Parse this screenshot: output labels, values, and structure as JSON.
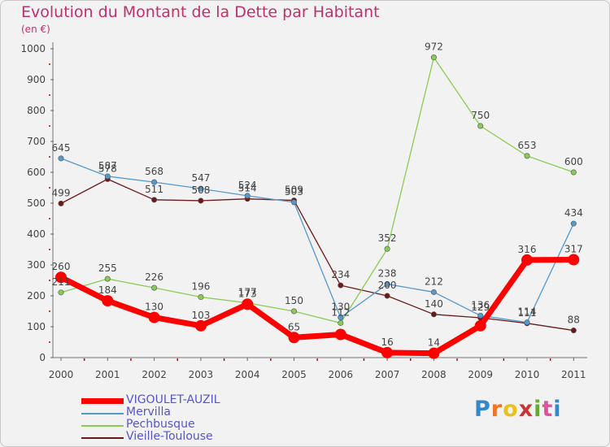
{
  "chart_data": {
    "type": "line",
    "title": "Evolution du Montant de la Dette par Habitant",
    "subtitle": "(en €)",
    "xlabel": "",
    "ylabel": "",
    "x": [
      "2000",
      "2001",
      "2002",
      "2003",
      "2004",
      "2005",
      "2006",
      "2007",
      "2008",
      "2009",
      "2010",
      "2011"
    ],
    "ylim": [
      0,
      1000
    ],
    "yticks": [
      0,
      100,
      200,
      300,
      400,
      500,
      600,
      700,
      800,
      900,
      1000
    ],
    "grid": false,
    "legend_position": "bottom-left",
    "series": [
      {
        "name": "VIGOULET-AUZIL",
        "color": "#ff0000",
        "values": [
          260,
          184,
          130,
          103,
          173,
          65,
          75,
          16,
          14,
          103,
          316,
          317
        ],
        "labels": [
          "260",
          "184",
          "130",
          "103",
          "173",
          "65",
          "",
          "16",
          "14",
          "",
          "316",
          "317"
        ]
      },
      {
        "name": "Mervilla",
        "color": "#5599cc",
        "values": [
          645,
          587,
          568,
          547,
          524,
          503,
          130,
          238,
          212,
          136,
          114,
          434
        ],
        "labels": [
          "645",
          "587",
          "568",
          "547",
          "524",
          "503",
          "130",
          "238",
          "212",
          "136",
          "114",
          "434"
        ]
      },
      {
        "name": "Pechbusque",
        "color": "#88cc55",
        "values": [
          211,
          255,
          226,
          196,
          177,
          150,
          112,
          352,
          972,
          750,
          653,
          600
        ],
        "labels": [
          "211",
          "255",
          "226",
          "196",
          "177",
          "150",
          "112",
          "352",
          "972",
          "750",
          "653",
          "600"
        ]
      },
      {
        "name": "Vieille-Toulouse",
        "color": "#6b1a1a",
        "values": [
          499,
          578,
          511,
          508,
          514,
          509,
          234,
          200,
          140,
          129,
          111,
          88
        ],
        "labels": [
          "499",
          "578",
          "511",
          "508",
          "514",
          "509",
          "234",
          "200",
          "140",
          "129",
          "111",
          "88"
        ]
      }
    ]
  },
  "branding": {
    "text": "Proxiti"
  }
}
